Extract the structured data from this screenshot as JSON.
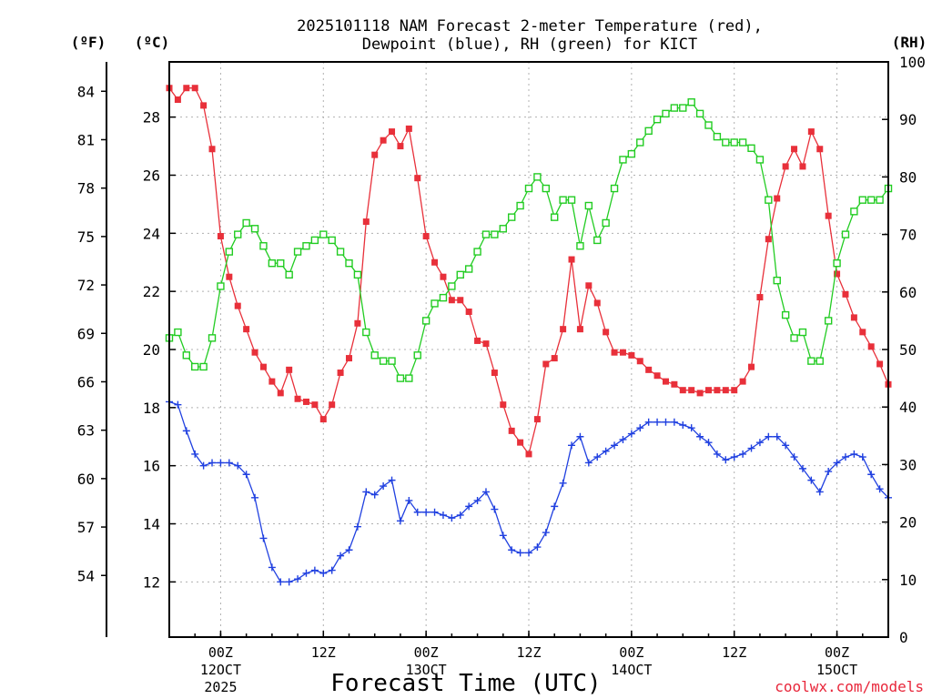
{
  "chart_data": {
    "type": "line",
    "title_line1": "2025101118 NAM Forecast 2-meter Temperature (red),",
    "title_line2": "Dewpoint (blue), RH (green) for KICT",
    "unit_labels": {
      "fahrenheit": "(ºF)",
      "celsius": "(ºC)",
      "rh": "(RH)"
    },
    "xlabel": "Forecast Time (UTC)",
    "credit": "coolwx.com/models",
    "x_range_hours": [
      0,
      84
    ],
    "celsius_range": [
      10.1,
      29.9
    ],
    "rh_range": [
      0,
      100
    ],
    "celsius_ticks": [
      "12",
      "14",
      "16",
      "18",
      "20",
      "22",
      "24",
      "26",
      "28"
    ],
    "fahrenheit_ticks": [
      "54",
      "57",
      "60",
      "63",
      "66",
      "69",
      "72",
      "75",
      "78",
      "81",
      "84"
    ],
    "rh_ticks": [
      "0",
      "10",
      "20",
      "30",
      "40",
      "50",
      "60",
      "70",
      "80",
      "90",
      "100"
    ],
    "x_ticks": [
      {
        "hour": 6,
        "label": "00Z",
        "sub": "12OCT",
        "sub2": "2025"
      },
      {
        "hour": 18,
        "label": "12Z",
        "sub": "",
        "sub2": ""
      },
      {
        "hour": 30,
        "label": "00Z",
        "sub": "13OCT",
        "sub2": ""
      },
      {
        "hour": 42,
        "label": "12Z",
        "sub": "",
        "sub2": ""
      },
      {
        "hour": 54,
        "label": "00Z",
        "sub": "14OCT",
        "sub2": ""
      },
      {
        "hour": 66,
        "label": "12Z",
        "sub": "",
        "sub2": ""
      },
      {
        "hour": 78,
        "label": "00Z",
        "sub": "15OCT",
        "sub2": ""
      }
    ],
    "series": [
      {
        "name": "Temperature (°C)",
        "axis": "celsius",
        "color": "#e8303a",
        "marker": "filled-square",
        "values": [
          29.0,
          28.6,
          29.0,
          29.0,
          28.4,
          26.9,
          23.9,
          22.5,
          21.5,
          20.7,
          19.9,
          19.4,
          18.9,
          18.5,
          19.3,
          18.3,
          18.2,
          18.1,
          17.6,
          18.1,
          19.2,
          19.7,
          20.9,
          24.4,
          26.7,
          27.2,
          27.5,
          27.0,
          27.6,
          25.9,
          23.9,
          23.0,
          22.5,
          21.7,
          21.7,
          21.3,
          20.3,
          20.2,
          19.2,
          18.1,
          17.2,
          16.8,
          16.4,
          17.6,
          19.5,
          19.7,
          20.7,
          23.1,
          20.7,
          22.2,
          21.6,
          20.6,
          19.9,
          19.9,
          19.8,
          19.6,
          19.3,
          19.1,
          18.9,
          18.8,
          18.6,
          18.6,
          18.5,
          18.6,
          18.6,
          18.6,
          18.6,
          18.9,
          19.4,
          21.8,
          23.8,
          25.2,
          26.3,
          26.9,
          26.3,
          27.5,
          26.9,
          24.6,
          22.6,
          21.9,
          21.1,
          20.6,
          20.1,
          19.5,
          18.8
        ]
      },
      {
        "name": "Dewpoint (°C)",
        "axis": "celsius",
        "color": "#2040e0",
        "marker": "plus",
        "values": [
          18.2,
          18.1,
          17.2,
          16.4,
          16.0,
          16.1,
          16.1,
          16.1,
          16.0,
          15.7,
          14.9,
          13.5,
          12.5,
          12.0,
          12.0,
          12.1,
          12.3,
          12.4,
          12.3,
          12.4,
          12.9,
          13.1,
          13.9,
          15.1,
          15.0,
          15.3,
          15.5,
          14.1,
          14.8,
          14.4,
          14.4,
          14.4,
          14.3,
          14.2,
          14.3,
          14.6,
          14.8,
          15.1,
          14.5,
          13.6,
          13.1,
          13.0,
          13.0,
          13.2,
          13.7,
          14.6,
          15.4,
          16.7,
          17.0,
          16.1,
          16.3,
          16.5,
          16.7,
          16.9,
          17.1,
          17.3,
          17.5,
          17.5,
          17.5,
          17.5,
          17.4,
          17.3,
          17.0,
          16.8,
          16.4,
          16.2,
          16.3,
          16.4,
          16.6,
          16.8,
          17.0,
          17.0,
          16.7,
          16.3,
          15.9,
          15.5,
          15.1,
          15.8,
          16.1,
          16.3,
          16.4,
          16.3,
          15.7,
          15.2,
          14.9
        ]
      },
      {
        "name": "RH (%)",
        "axis": "rh",
        "color": "#22cc22",
        "marker": "open-square",
        "values": [
          52,
          53,
          49,
          47,
          47,
          52,
          61,
          67,
          70,
          72,
          71,
          68,
          65,
          65,
          63,
          67,
          68,
          69,
          70,
          69,
          67,
          65,
          63,
          53,
          49,
          48,
          48,
          45,
          45,
          49,
          55,
          58,
          59,
          61,
          63,
          64,
          67,
          70,
          70,
          71,
          73,
          75,
          78,
          80,
          78,
          73,
          76,
          76,
          68,
          75,
          69,
          72,
          78,
          83,
          84,
          86,
          88,
          90,
          91,
          92,
          92,
          93,
          91,
          89,
          87,
          86,
          86,
          86,
          85,
          83,
          76,
          62,
          56,
          52,
          53,
          48,
          48,
          55,
          65,
          70,
          74,
          76,
          76,
          76,
          78
        ]
      }
    ]
  }
}
